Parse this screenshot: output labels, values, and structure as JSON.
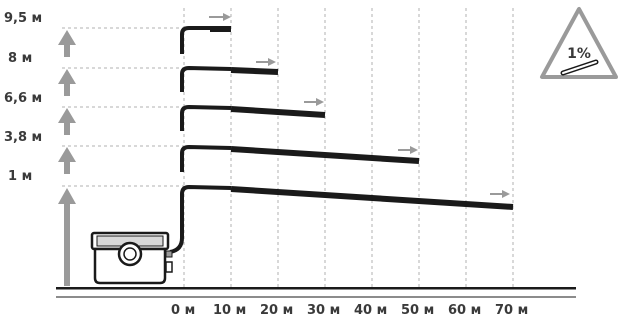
{
  "height_labels": [
    "9,5 м",
    "8 м",
    "6,6 м",
    "3,8 м",
    "1 м"
  ],
  "distance_labels": [
    "0 м",
    "10 м",
    "20 м",
    "30 м",
    "40 м",
    "50 м",
    "60 м",
    "70 м"
  ],
  "slope_sign": {
    "value": "1%"
  },
  "pipe_runs": [
    {
      "lift": "9,5 м",
      "distance_m": 10
    },
    {
      "lift": "8 м",
      "distance_m": 20
    },
    {
      "lift": "6,6 м",
      "distance_m": 30
    },
    {
      "lift": "3,8 м",
      "distance_m": 50
    },
    {
      "lift": "1 м",
      "distance_m": 70
    }
  ],
  "colors": {
    "pipe": "#1a1a1a",
    "arrow": "#9a9a9a",
    "grid": "#b0b0b0",
    "text": "#3a3a3a"
  },
  "icons": [
    "up-arrow-icon",
    "flow-arrow-icon",
    "warning-triangle-icon",
    "pump-unit-icon"
  ]
}
